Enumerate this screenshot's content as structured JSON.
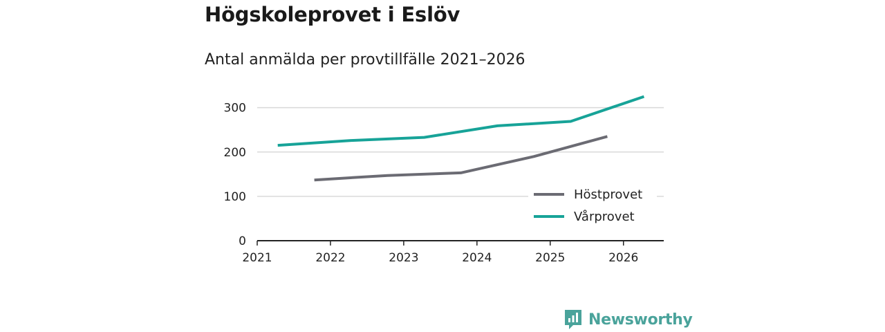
{
  "title": "Högskoleprovet i Eslöv",
  "subtitle": "Antal anmälda per provtillfälle 2021–2026",
  "brand": {
    "name": "Newsworthy"
  },
  "colors": {
    "hostprovet": "#6b6b73",
    "varprovet": "#17a398",
    "grid": "#d9d9d9",
    "axis": "#222222"
  },
  "chart_data": {
    "type": "line",
    "title": "Högskoleprovet i Eslöv",
    "subtitle": "Antal anmälda per provtillfälle 2021–2026",
    "xlabel": "",
    "ylabel": "",
    "xlim": [
      2021,
      2026.55
    ],
    "ylim": [
      0,
      340
    ],
    "x_ticks": [
      "2021",
      "2022",
      "2023",
      "2024",
      "2025",
      "2026"
    ],
    "y_ticks": [
      0,
      100,
      200,
      300
    ],
    "grid": true,
    "legend_position": "bottom-right",
    "series": [
      {
        "name": "Höstprovet",
        "color": "#6b6b73",
        "points": [
          {
            "x": 2021.78,
            "y": 137
          },
          {
            "x": 2022.78,
            "y": 147
          },
          {
            "x": 2023.78,
            "y": 153
          },
          {
            "x": 2024.78,
            "y": 190
          },
          {
            "x": 2025.78,
            "y": 235
          }
        ]
      },
      {
        "name": "Vårprovet",
        "color": "#17a398",
        "points": [
          {
            "x": 2021.28,
            "y": 215
          },
          {
            "x": 2022.28,
            "y": 226
          },
          {
            "x": 2023.28,
            "y": 233
          },
          {
            "x": 2024.28,
            "y": 259
          },
          {
            "x": 2025.28,
            "y": 269
          },
          {
            "x": 2026.28,
            "y": 325
          }
        ]
      }
    ]
  }
}
